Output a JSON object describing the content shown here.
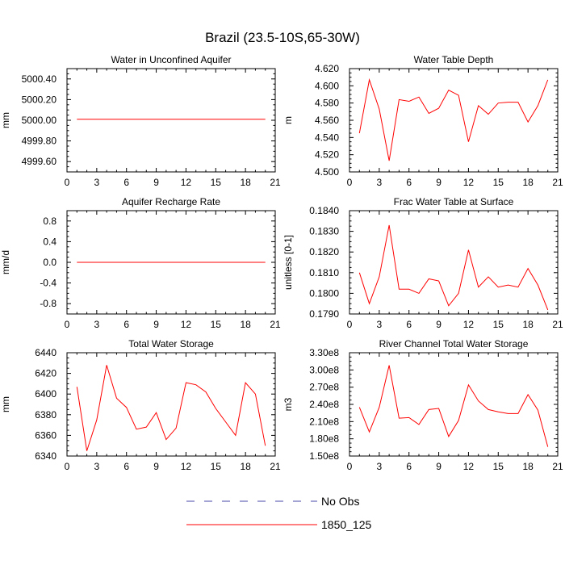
{
  "figure": {
    "title": "Brazil (23.5-10S,65-30W)",
    "series_color": "#ff0000",
    "noobs_color": "#4a4aa8"
  },
  "legend": {
    "entries": [
      {
        "label": "No Obs",
        "style": "dashed",
        "color": "#4a4aa8"
      },
      {
        "label": "1850_125",
        "style": "solid",
        "color": "#ff0000"
      }
    ]
  },
  "chart_data": [
    {
      "type": "line",
      "title": "Water in Unconfined Aquifer",
      "ylabel": "mm",
      "xlim": [
        0,
        21
      ],
      "xticks": [
        0,
        3,
        6,
        9,
        12,
        15,
        18,
        21
      ],
      "xtick_labels": [
        "0",
        "3",
        "6",
        "9",
        "12",
        "15",
        "18",
        "21"
      ],
      "ylim": [
        4999.5,
        5000.5
      ],
      "yticks": [
        4999.6,
        4999.8,
        5000.0,
        5000.2,
        5000.4
      ],
      "ytick_labels": [
        "4999.60",
        "4999.80",
        "5000.00",
        "5000.20",
        "5000.40"
      ],
      "x": [
        1,
        2,
        3,
        4,
        5,
        6,
        7,
        8,
        9,
        10,
        11,
        12,
        13,
        14,
        15,
        16,
        17,
        18,
        19,
        20
      ],
      "series": [
        {
          "name": "1850_125",
          "values": [
            5000.01,
            5000.01,
            5000.01,
            5000.01,
            5000.01,
            5000.01,
            5000.01,
            5000.01,
            5000.01,
            5000.01,
            5000.01,
            5000.01,
            5000.01,
            5000.01,
            5000.01,
            5000.01,
            5000.01,
            5000.01,
            5000.01,
            5000.01
          ]
        }
      ]
    },
    {
      "type": "line",
      "title": "Water Table Depth",
      "ylabel": "m",
      "xlim": [
        0,
        21
      ],
      "xticks": [
        0,
        3,
        6,
        9,
        12,
        15,
        18,
        21
      ],
      "xtick_labels": [
        "0",
        "3",
        "6",
        "9",
        "12",
        "15",
        "18",
        "21"
      ],
      "ylim": [
        4.5,
        4.62
      ],
      "yticks": [
        4.5,
        4.52,
        4.54,
        4.56,
        4.58,
        4.6,
        4.62
      ],
      "ytick_labels": [
        "4.500",
        "4.520",
        "4.540",
        "4.560",
        "4.580",
        "4.600",
        "4.620"
      ],
      "x": [
        1,
        2,
        3,
        4,
        5,
        6,
        7,
        8,
        9,
        10,
        11,
        12,
        13,
        14,
        15,
        16,
        17,
        18,
        19,
        20
      ],
      "series": [
        {
          "name": "1850_125",
          "values": [
            4.545,
            4.607,
            4.573,
            4.513,
            4.584,
            4.582,
            4.587,
            4.568,
            4.574,
            4.595,
            4.589,
            4.535,
            4.577,
            4.567,
            4.58,
            4.581,
            4.581,
            4.558,
            4.577,
            4.607
          ]
        }
      ]
    },
    {
      "type": "line",
      "title": "Aquifer Recharge Rate",
      "ylabel": "mm/d",
      "xlim": [
        0,
        21
      ],
      "xticks": [
        0,
        3,
        6,
        9,
        12,
        15,
        18,
        21
      ],
      "xtick_labels": [
        "0",
        "3",
        "6",
        "9",
        "12",
        "15",
        "18",
        "21"
      ],
      "ylim": [
        -1.0,
        1.0
      ],
      "yticks": [
        -0.8,
        -0.4,
        0.0,
        0.4,
        0.8
      ],
      "ytick_labels": [
        "-0.8",
        "-0.4",
        "0.0",
        "0.4",
        "0.8"
      ],
      "x": [
        1,
        2,
        3,
        4,
        5,
        6,
        7,
        8,
        9,
        10,
        11,
        12,
        13,
        14,
        15,
        16,
        17,
        18,
        19,
        20
      ],
      "series": [
        {
          "name": "1850_125",
          "values": [
            0,
            0,
            0,
            0,
            0,
            0,
            0,
            0,
            0,
            0,
            0,
            0,
            0,
            0,
            0,
            0,
            0,
            0,
            0,
            0
          ]
        }
      ]
    },
    {
      "type": "line",
      "title": "Frac Water Table at Surface",
      "ylabel": "unitless [0-1]",
      "xlim": [
        0,
        21
      ],
      "xticks": [
        0,
        3,
        6,
        9,
        12,
        15,
        18,
        21
      ],
      "xtick_labels": [
        "0",
        "3",
        "6",
        "9",
        "12",
        "15",
        "18",
        "21"
      ],
      "ylim": [
        0.179,
        0.184
      ],
      "yticks": [
        0.179,
        0.18,
        0.181,
        0.182,
        0.183,
        0.184
      ],
      "ytick_labels": [
        "0.1790",
        "0.1800",
        "0.1810",
        "0.1820",
        "0.1830",
        "0.1840"
      ],
      "x": [
        1,
        2,
        3,
        4,
        5,
        6,
        7,
        8,
        9,
        10,
        11,
        12,
        13,
        14,
        15,
        16,
        17,
        18,
        19,
        20
      ],
      "series": [
        {
          "name": "1850_125",
          "values": [
            0.181,
            0.1795,
            0.1808,
            0.1833,
            0.1802,
            0.1802,
            0.18,
            0.1807,
            0.1806,
            0.1794,
            0.18,
            0.1821,
            0.1803,
            0.1808,
            0.1803,
            0.1804,
            0.1803,
            0.1812,
            0.1804,
            0.1792
          ]
        }
      ]
    },
    {
      "type": "line",
      "title": "Total Water Storage",
      "ylabel": "mm",
      "xlim": [
        0,
        21
      ],
      "xticks": [
        0,
        3,
        6,
        9,
        12,
        15,
        18,
        21
      ],
      "xtick_labels": [
        "0",
        "3",
        "6",
        "9",
        "12",
        "15",
        "18",
        "21"
      ],
      "ylim": [
        6340,
        6440
      ],
      "yticks": [
        6340,
        6360,
        6380,
        6400,
        6420,
        6440
      ],
      "ytick_labels": [
        "6340",
        "6360",
        "6380",
        "6400",
        "6420",
        "6440"
      ],
      "x": [
        1,
        2,
        3,
        4,
        5,
        6,
        7,
        8,
        9,
        10,
        11,
        12,
        13,
        14,
        15,
        16,
        17,
        18,
        19,
        20
      ],
      "series": [
        {
          "name": "1850_125",
          "values": [
            6407,
            6345,
            6375,
            6428,
            6396,
            6387,
            6366,
            6368,
            6382,
            6356,
            6367,
            6411,
            6409,
            6402,
            6386,
            6373,
            6360,
            6411,
            6400,
            6350
          ]
        }
      ]
    },
    {
      "type": "line",
      "title": "River Channel Total Water Storage",
      "ylabel": "m3",
      "xlim": [
        0,
        21
      ],
      "xticks": [
        0,
        3,
        6,
        9,
        12,
        15,
        18,
        21
      ],
      "xtick_labels": [
        "0",
        "3",
        "6",
        "9",
        "12",
        "15",
        "18",
        "21"
      ],
      "ylim": [
        150000000,
        330000000
      ],
      "yticks": [
        150000000,
        180000000,
        210000000,
        240000000,
        270000000,
        300000000,
        330000000
      ],
      "ytick_labels": [
        "1.50e8",
        "1.80e8",
        "2.10e8",
        "2.40e8",
        "2.70e8",
        "3.00e8",
        "3.30e8"
      ],
      "x": [
        1,
        2,
        3,
        4,
        5,
        6,
        7,
        8,
        9,
        10,
        11,
        12,
        13,
        14,
        15,
        16,
        17,
        18,
        19,
        20
      ],
      "series": [
        {
          "name": "1850_125",
          "values": [
            235000000,
            192000000,
            235000000,
            308000000,
            216000000,
            217000000,
            205000000,
            231000000,
            233000000,
            184000000,
            212000000,
            274000000,
            246000000,
            231000000,
            227000000,
            224000000,
            224000000,
            257000000,
            230000000,
            166000000
          ]
        }
      ]
    }
  ]
}
